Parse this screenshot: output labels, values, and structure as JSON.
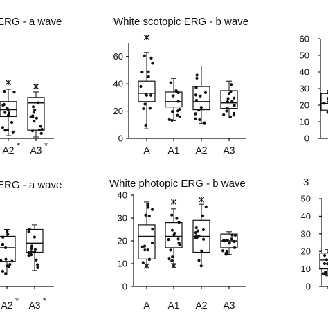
{
  "chart_data": [
    {
      "type": "box",
      "title": "ERG - a wave",
      "categories": [
        "A2",
        "A3"
      ],
      "category_labels": [
        "A2",
        "A3"
      ],
      "category_markers": [
        "*",
        "*"
      ],
      "ylim": [
        0,
        70
      ],
      "yticks": [],
      "boxes": [
        {
          "name": "A2",
          "q1": 16,
          "median": 21,
          "q3": 27,
          "whisker_low": 2,
          "whisker_high": 36,
          "outliers_high": [
            41
          ],
          "outliers_low": []
        },
        {
          "name": "A3",
          "q1": 6,
          "median": 26,
          "q3": 30,
          "whisker_low": 1,
          "whisker_high": 34,
          "outliers_high": [
            38
          ],
          "outliers_low": []
        }
      ]
    },
    {
      "type": "box",
      "title": "White scotopic ERG - b wave",
      "categories": [
        "A",
        "A1",
        "A2",
        "A3"
      ],
      "category_labels": [
        "A",
        "A1",
        "A2",
        "A3"
      ],
      "category_markers": [
        "",
        "",
        "",
        ""
      ],
      "ylim": [
        0,
        70
      ],
      "yticks": [
        0,
        20,
        40,
        60
      ],
      "boxes": [
        {
          "name": "A",
          "q1": 27,
          "median": 33,
          "q3": 42,
          "whisker_low": 7,
          "whisker_high": 63,
          "outliers_high": [
            74,
            74
          ],
          "outliers_low": []
        },
        {
          "name": "A1",
          "q1": 23,
          "median": 27,
          "q3": 34,
          "whisker_low": 13,
          "whisker_high": 44,
          "outliers_high": [],
          "outliers_low": []
        },
        {
          "name": "A2",
          "q1": 21,
          "median": 27,
          "q3": 38,
          "whisker_low": 11,
          "whisker_high": 53,
          "outliers_high": [],
          "outliers_low": []
        },
        {
          "name": "A3",
          "q1": 22,
          "median": 26,
          "q3": 35,
          "whisker_low": 15,
          "whisker_high": 42,
          "outliers_high": [],
          "outliers_low": []
        }
      ]
    },
    {
      "type": "box",
      "title": "",
      "categories": [
        ""
      ],
      "category_labels": [],
      "category_markers": [],
      "ylim": [
        0,
        60
      ],
      "yticks": [
        0,
        10,
        20,
        30,
        40,
        50,
        60
      ],
      "boxes": [
        {
          "name": "",
          "q1": 17,
          "median": 21,
          "q3": 27,
          "whisker_low": 15,
          "whisker_high": 29,
          "outliers_high": [],
          "outliers_low": []
        }
      ]
    },
    {
      "type": "box",
      "title": "ERG - a wave",
      "categories": [
        "A2",
        "A3"
      ],
      "category_labels": [
        "A2",
        "A3"
      ],
      "category_markers": [
        "*",
        "*"
      ],
      "ylim": [
        0,
        40
      ],
      "yticks": [],
      "boxes": [
        {
          "name": "A2",
          "q1": 11,
          "median": 17,
          "q3": 22,
          "whisker_low": 5,
          "whisker_high": 25,
          "outliers_high": [],
          "outliers_low": []
        },
        {
          "name": "A3",
          "q1": 15,
          "median": 19,
          "q3": 25,
          "whisker_low": 7,
          "whisker_high": 27,
          "outliers_high": [],
          "outliers_low": []
        }
      ]
    },
    {
      "type": "box",
      "title": "White photopic ERG - b wave",
      "categories": [
        "A",
        "A1",
        "A2",
        "A3"
      ],
      "category_labels": [
        "A",
        "A1",
        "A2",
        "A3"
      ],
      "category_markers": [
        "",
        "",
        "",
        ""
      ],
      "ylim": [
        0,
        40
      ],
      "yticks": [
        0,
        10,
        20,
        30,
        40
      ],
      "boxes": [
        {
          "name": "A",
          "q1": 12,
          "median": 22,
          "q3": 27,
          "whisker_low": 8,
          "whisker_high": 37,
          "outliers_high": [],
          "outliers_low": [
            9
          ]
        },
        {
          "name": "A1",
          "q1": 17,
          "median": 22,
          "q3": 28,
          "whisker_low": 10,
          "whisker_high": 34,
          "outliers_high": [
            37
          ],
          "outliers_low": [
            9
          ]
        },
        {
          "name": "A2",
          "q1": 15,
          "median": 22,
          "q3": 29,
          "whisker_low": 9,
          "whisker_high": 36,
          "outliers_high": [
            38
          ],
          "outliers_low": []
        },
        {
          "name": "A3",
          "q1": 17,
          "median": 20,
          "q3": 23,
          "whisker_low": 14,
          "whisker_high": 24,
          "outliers_high": [],
          "outliers_low": []
        }
      ]
    },
    {
      "type": "box",
      "title": "3",
      "categories": [
        ""
      ],
      "category_labels": [],
      "category_markers": [],
      "ylim": [
        0,
        50
      ],
      "yticks": [
        0,
        10,
        20,
        30,
        40,
        50
      ],
      "boxes": [
        {
          "name": "",
          "q1": 10,
          "median": 15,
          "q3": 19,
          "whisker_low": 6,
          "whisker_high": 21,
          "outliers_high": [],
          "outliers_low": []
        }
      ]
    }
  ]
}
